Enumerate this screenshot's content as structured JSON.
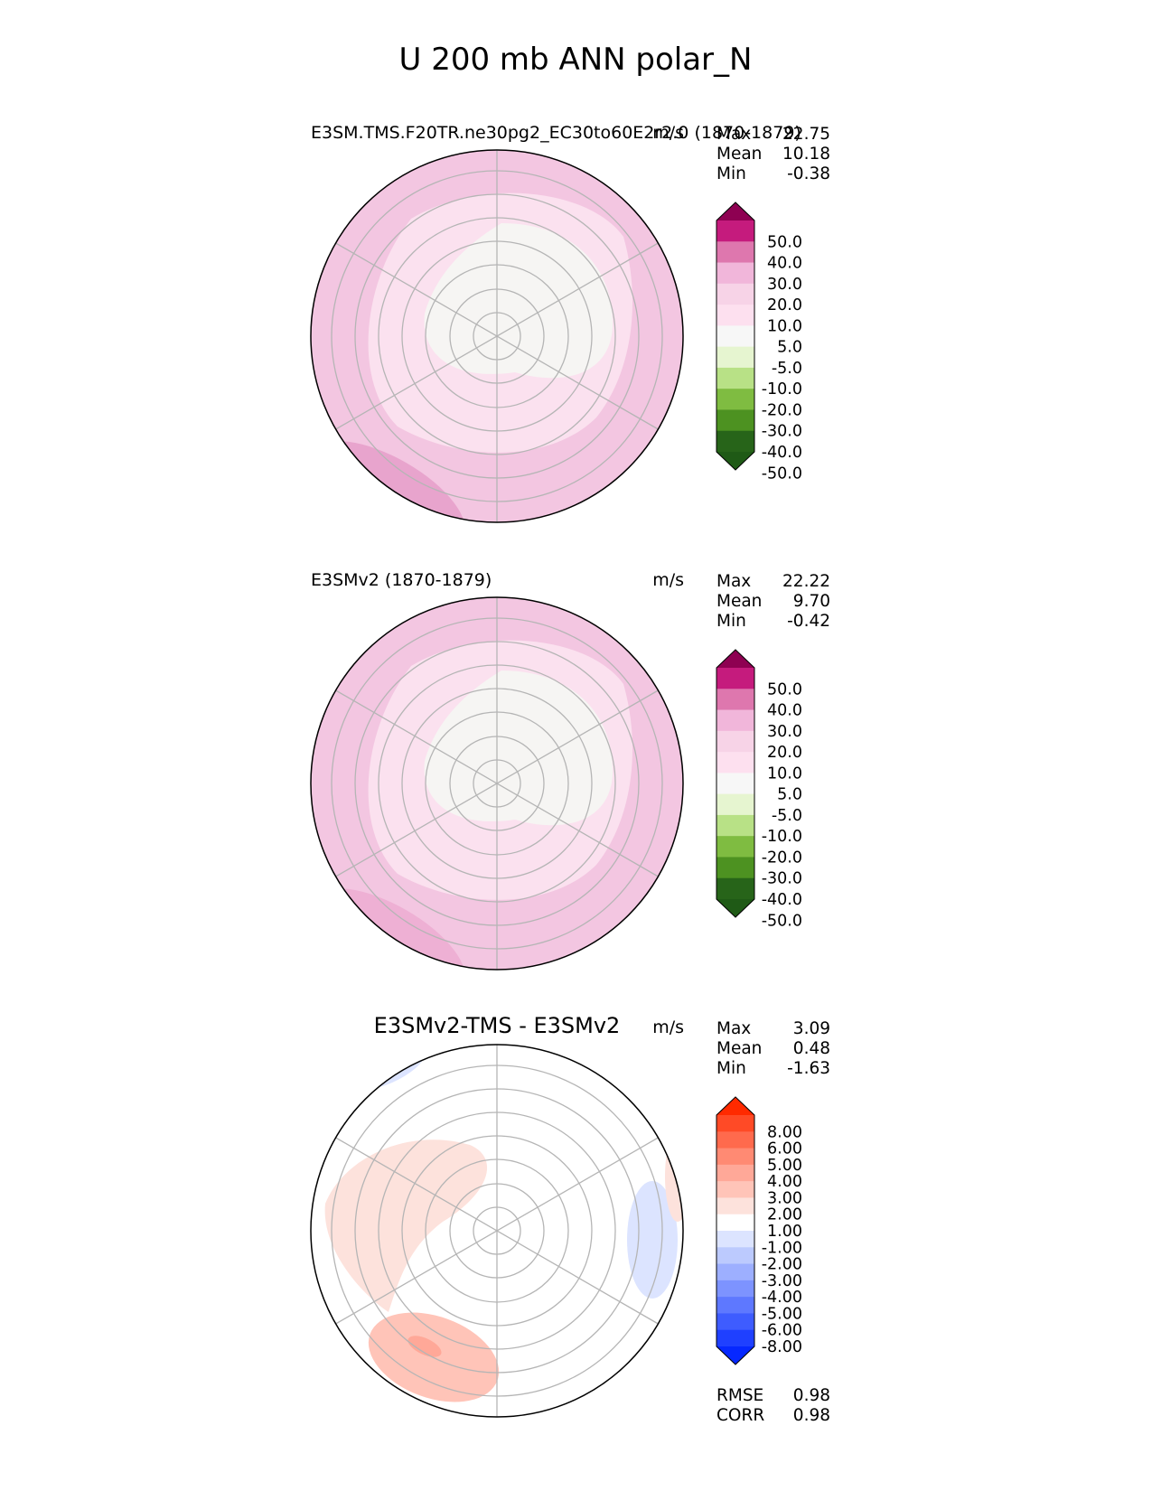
{
  "figure": {
    "title": "U 200 mb ANN polar_N"
  },
  "chart_data": [
    {
      "type": "heatmap",
      "projection": "north-polar-stereographic",
      "title": "E3SM.TMS.F20TR.ne30pg2_EC30to60E2r2.0",
      "period": "(1870-1879)",
      "units": "m/s",
      "stats": [
        {
          "label": "Max",
          "value": "22.75"
        },
        {
          "label": "Mean",
          "value": "10.18"
        },
        {
          "label": "Min",
          "value": "-0.38"
        }
      ],
      "colorbar": {
        "ticks": [
          "50.0",
          "40.0",
          "30.0",
          "20.0",
          "10.0",
          "5.0",
          "-5.0",
          "-10.0",
          "-20.0",
          "-30.0",
          "-40.0",
          "-50.0"
        ],
        "colors": [
          "#8e0152",
          "#c51b7d",
          "#de77ae",
          "#f1b6da",
          "#f7d3e7",
          "#fde0ef",
          "#f7f7f7",
          "#e6f5d0",
          "#b8e186",
          "#7fbc41",
          "#4d9221",
          "#276419",
          "#1f5a16"
        ],
        "extend": "both"
      }
    },
    {
      "type": "heatmap",
      "projection": "north-polar-stereographic",
      "title": "E3SMv2",
      "period": "(1870-1879)",
      "units": "m/s",
      "stats": [
        {
          "label": "Max",
          "value": "22.22"
        },
        {
          "label": "Mean",
          "value": "9.70"
        },
        {
          "label": "Min",
          "value": "-0.42"
        }
      ],
      "colorbar": {
        "ticks": [
          "50.0",
          "40.0",
          "30.0",
          "20.0",
          "10.0",
          "5.0",
          "-5.0",
          "-10.0",
          "-20.0",
          "-30.0",
          "-40.0",
          "-50.0"
        ],
        "colors": [
          "#8e0152",
          "#c51b7d",
          "#de77ae",
          "#f1b6da",
          "#f7d3e7",
          "#fde0ef",
          "#f7f7f7",
          "#e6f5d0",
          "#b8e186",
          "#7fbc41",
          "#4d9221",
          "#276419",
          "#1f5a16"
        ],
        "extend": "both"
      }
    },
    {
      "type": "heatmap",
      "projection": "north-polar-stereographic",
      "title": "E3SMv2-TMS - E3SMv2",
      "units": "m/s",
      "stats": [
        {
          "label": "Max",
          "value": "3.09"
        },
        {
          "label": "Mean",
          "value": "0.48"
        },
        {
          "label": "Min",
          "value": "-1.63"
        }
      ],
      "metrics": [
        {
          "label": "RMSE",
          "value": "0.98"
        },
        {
          "label": "CORR",
          "value": "0.98"
        }
      ],
      "colorbar": {
        "ticks": [
          "8.00",
          "6.00",
          "5.00",
          "4.00",
          "3.00",
          "2.00",
          "1.00",
          "-1.00",
          "-2.00",
          "-3.00",
          "-4.00",
          "-5.00",
          "-6.00",
          "-8.00"
        ],
        "colors": [
          "#ff2a00",
          "#ff4a26",
          "#ff6a4d",
          "#ff8a73",
          "#ffa898",
          "#ffc4b8",
          "#fde2dc",
          "#ffffff",
          "#dce4ff",
          "#bccafe",
          "#9dafff",
          "#7d93ff",
          "#5e78ff",
          "#3e5cff",
          "#1f40ff",
          "#0628ff"
        ],
        "extend": "both"
      }
    }
  ]
}
